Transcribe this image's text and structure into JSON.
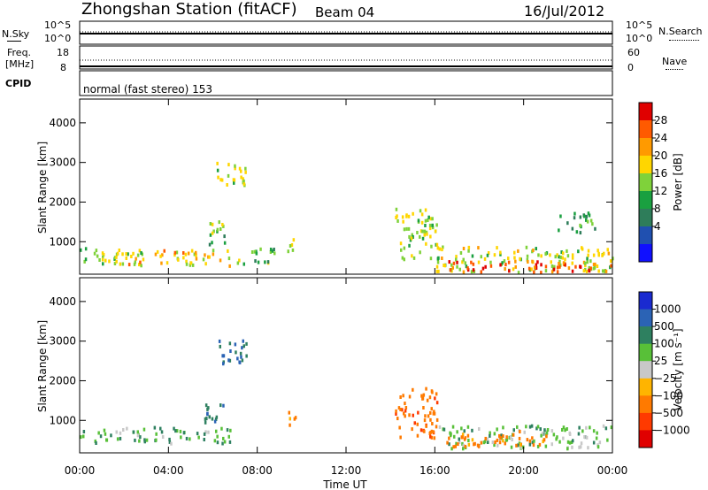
{
  "header": {
    "station": "Zhongshan Station (fitACF)",
    "beam": "Beam 04",
    "date": "16/Jul/2012"
  },
  "strip1": {
    "left_label": "N.Sky",
    "right_label": "N.Search",
    "left_ticks": [
      "10^5",
      "10^0"
    ],
    "right_ticks": [
      "10^5",
      "10^0"
    ]
  },
  "strip2": {
    "left_label_top": "Freq.",
    "left_label_bottom": "[MHz]",
    "right_label": "Nave",
    "left_ticks": [
      "18",
      "8"
    ],
    "right_ticks": [
      "60",
      "0"
    ],
    "cpid_label": "CPID"
  },
  "cpid_text": "normal (fast stereo) 153",
  "x_axis": {
    "label": "Time UT",
    "ticks": [
      "00:00",
      "04:00",
      "08:00",
      "12:00",
      "16:00",
      "20:00",
      "00:00"
    ]
  },
  "y_axis": {
    "label": "Slant Range [km]",
    "ticks": [
      "4000",
      "3000",
      "2000",
      "1000"
    ]
  },
  "chart_data": [
    {
      "type": "heatmap",
      "name": "power",
      "xlabel": "Time UT",
      "ylabel": "Slant Range [km]",
      "xlim_hours": [
        0,
        24
      ],
      "ylim": [
        180,
        4600
      ],
      "colorbar": {
        "label": "Power [dB]",
        "ticks": [
          "28",
          "24",
          "20",
          "16",
          "12",
          "8",
          "4"
        ],
        "colors": [
          "#e00000",
          "#ff5a00",
          "#ff9a00",
          "#ffd600",
          "#7fd23a",
          "#1aa040",
          "#2e7d5a",
          "#2050b0",
          "#1010ff"
        ]
      },
      "regions": [
        {
          "t0": 0.0,
          "t1": 3.0,
          "r0": 350,
          "r1": 800,
          "v": 12
        },
        {
          "t0": 1.6,
          "t1": 2.8,
          "r0": 400,
          "r1": 700,
          "v": 20
        },
        {
          "t0": 3.3,
          "t1": 4.8,
          "r0": 350,
          "r1": 750,
          "v": 18
        },
        {
          "t0": 4.7,
          "t1": 6.8,
          "r0": 350,
          "r1": 780,
          "v": 16
        },
        {
          "t0": 5.5,
          "t1": 6.5,
          "r0": 900,
          "r1": 1500,
          "v": 10
        },
        {
          "t0": 6.0,
          "t1": 7.5,
          "r0": 2400,
          "r1": 3000,
          "v": 14
        },
        {
          "t0": 7.0,
          "t1": 8.8,
          "r0": 400,
          "r1": 800,
          "v": 10
        },
        {
          "t0": 9.3,
          "t1": 9.7,
          "r0": 700,
          "r1": 1200,
          "v": 16
        },
        {
          "t0": 14.2,
          "t1": 16.1,
          "r0": 500,
          "r1": 1800,
          "v": 13
        },
        {
          "t0": 16.0,
          "t1": 24.0,
          "r0": 200,
          "r1": 850,
          "v": 14
        },
        {
          "t0": 16.5,
          "t1": 24.0,
          "r0": 200,
          "r1": 480,
          "v": 24
        },
        {
          "t0": 21.5,
          "t1": 23.2,
          "r0": 1200,
          "r1": 1700,
          "v": 8
        }
      ]
    },
    {
      "type": "heatmap",
      "name": "velocity",
      "xlabel": "Time UT",
      "ylabel": "Slant Range [km]",
      "xlim_hours": [
        0,
        24
      ],
      "ylim": [
        180,
        4600
      ],
      "colorbar": {
        "label": "Velocity [m s⁻¹]",
        "ticks": [
          "1000",
          "500",
          "100",
          "25",
          "−25",
          "−100",
          "−500",
          "−1000"
        ],
        "colors": [
          "#1a2ad0",
          "#2b63b5",
          "#2e8060",
          "#58c038",
          "#c8c8c8",
          "#ffb400",
          "#ff7a00",
          "#ff3a00",
          "#e00000"
        ]
      },
      "regions": [
        {
          "t0": 0.0,
          "t1": 3.0,
          "r0": 400,
          "r1": 800,
          "v": 80
        },
        {
          "t0": 3.3,
          "t1": 6.8,
          "r0": 380,
          "r1": 800,
          "v": 90
        },
        {
          "t0": 5.5,
          "t1": 6.5,
          "r0": 900,
          "r1": 1500,
          "v": 400
        },
        {
          "t0": 6.0,
          "t1": 7.5,
          "r0": 2400,
          "r1": 3000,
          "v": 600
        },
        {
          "t0": 9.3,
          "t1": 9.7,
          "r0": 700,
          "r1": 1200,
          "v": -300
        },
        {
          "t0": 14.2,
          "t1": 16.1,
          "r0": 500,
          "r1": 1800,
          "v": -400
        },
        {
          "t0": 16.0,
          "t1": 24.0,
          "r0": 250,
          "r1": 850,
          "v": 60
        },
        {
          "t0": 16.5,
          "t1": 21.0,
          "r0": 300,
          "r1": 700,
          "v": -200
        }
      ]
    }
  ]
}
